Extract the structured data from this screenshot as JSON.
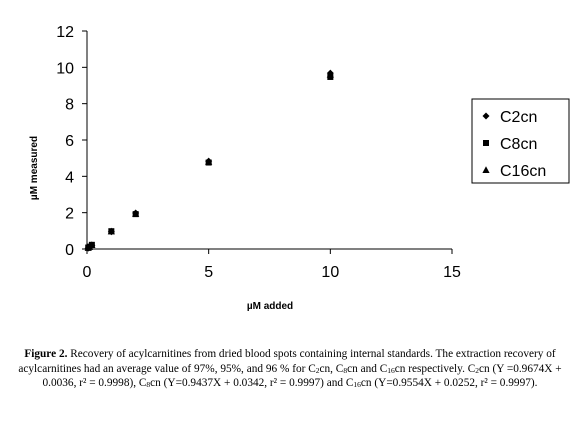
{
  "chart_data": {
    "type": "scatter",
    "xlabel": "µM added",
    "ylabel": "µM measured",
    "xlim": [
      0,
      15
    ],
    "ylim": [
      0,
      12
    ],
    "x_ticks": [
      "0",
      "5",
      "10",
      "15"
    ],
    "y_ticks": [
      "0",
      "2",
      "4",
      "6",
      "8",
      "10",
      "12"
    ],
    "grid": false,
    "legend_position": "right",
    "series": [
      {
        "name": "C2cn",
        "marker": "diamond",
        "points": [
          [
            0.05,
            0.05
          ],
          [
            0.1,
            0.1
          ],
          [
            0.2,
            0.2
          ],
          [
            1,
            0.95
          ],
          [
            2,
            1.98
          ],
          [
            5,
            4.84
          ],
          [
            10,
            9.68
          ]
        ]
      },
      {
        "name": "C8cn",
        "marker": "square",
        "points": [
          [
            0.05,
            0.08
          ],
          [
            0.1,
            0.13
          ],
          [
            0.2,
            0.23
          ],
          [
            1,
            0.98
          ],
          [
            2,
            1.92
          ],
          [
            5,
            4.76
          ],
          [
            10,
            9.47
          ]
        ]
      },
      {
        "name": "C16cn",
        "marker": "triangle",
        "points": [
          [
            0.05,
            0.06
          ],
          [
            0.1,
            0.12
          ],
          [
            0.2,
            0.22
          ],
          [
            1,
            0.97
          ],
          [
            2,
            1.94
          ],
          [
            5,
            4.8
          ],
          [
            10,
            9.6
          ]
        ]
      }
    ]
  },
  "caption": {
    "label": "Figure 2.",
    "p1": " Recovery of acylcarnitines from dried blood spots containing internal standards. The extraction recovery of acylcarnitines had an average value of 97%, 95%, and 96 % for C",
    "s1": "2",
    "p2": "cn, C",
    "s2": "8",
    "p3": "cn and C",
    "s3": "16",
    "p4": "cn respectively. C",
    "s4": "2",
    "p5": "cn (Y =0.9674X + 0.0036, r² = 0.9998), C",
    "s5": "8",
    "p6": "cn (Y=0.9437X + 0.0342, r² = 0.9997) and C",
    "s6": "16",
    "p7": "cn (Y=0.9554X + 0.0252, r² = 0.9997)."
  }
}
